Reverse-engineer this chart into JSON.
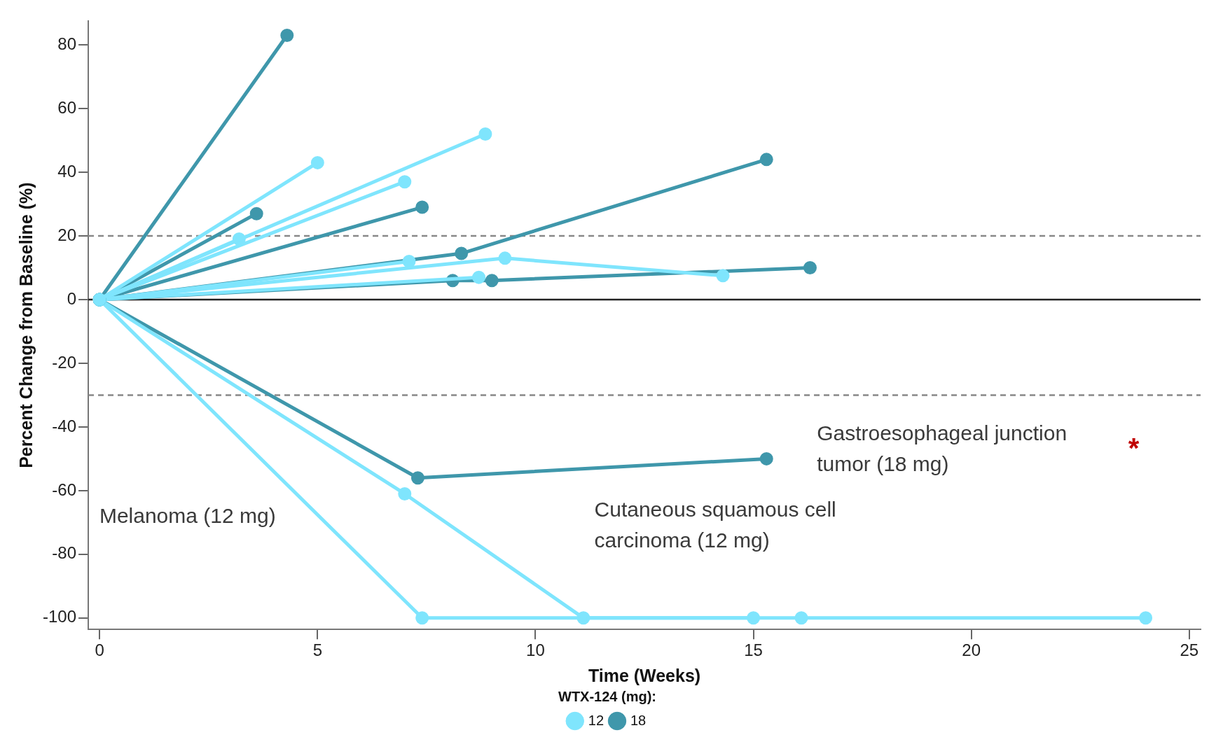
{
  "chart_data": {
    "type": "line",
    "xlabel": "Time (Weeks)",
    "ylabel": "Percent Change from Baseline (%)",
    "legend_title": "WTX-124 (mg):",
    "legend": "bottom",
    "marker": "circle",
    "line_style": "solid",
    "grid": false,
    "xlim": [
      -0.26,
      25.26
    ],
    "xticks": [
      0,
      5,
      10,
      15,
      20,
      25
    ],
    "ylim": [
      -103.6,
      87.5
    ],
    "yticks": [
      -100,
      -80,
      -60,
      -40,
      -20,
      0,
      20,
      40,
      60,
      80
    ],
    "series": [
      {
        "name": "12",
        "color": "#7fe5fd",
        "x": [
          0,
          5.0
        ],
        "values": [
          0,
          43
        ]
      },
      {
        "name": "18",
        "color": "#3f97ab",
        "x": [
          0,
          4.3
        ],
        "values": [
          0,
          83
        ]
      },
      {
        "color": "#7fe5fd",
        "x": [
          0,
          8.85
        ],
        "values": [
          0,
          52
        ]
      },
      {
        "color": "#7fe5fd",
        "x": [
          0,
          7.0
        ],
        "values": [
          0,
          37
        ]
      },
      {
        "color": "#7fe5fd",
        "x": [
          0,
          3.2
        ],
        "values": [
          0,
          19
        ]
      },
      {
        "color": "#7fe5fd",
        "x": [
          0,
          7.1
        ],
        "values": [
          0,
          12
        ]
      },
      {
        "color": "#7fe5fd",
        "x": [
          0,
          9.3,
          14.3
        ],
        "values": [
          0,
          13,
          7.5
        ]
      },
      {
        "color": "#7fe5fd",
        "x": [
          0,
          8.7
        ],
        "values": [
          0,
          7
        ]
      },
      {
        "color": "#7fe5fd",
        "x": [
          0,
          7.0,
          11.1,
          15.0
        ],
        "values": [
          0,
          -61,
          -100,
          -100
        ]
      },
      {
        "color": "#7fe5fd",
        "x": [
          0,
          7.4,
          16.1,
          24.0
        ],
        "values": [
          0,
          -100,
          -100,
          -100
        ]
      },
      {
        "color": "#3f97ab",
        "x": [
          0,
          3.6
        ],
        "values": [
          0,
          27
        ]
      },
      {
        "color": "#3f97ab",
        "x": [
          0,
          7.4
        ],
        "values": [
          0,
          29
        ]
      },
      {
        "color": "#3f97ab",
        "x": [
          0,
          8.3,
          15.3
        ],
        "values": [
          0,
          14.5,
          44
        ]
      },
      {
        "color": "#3f97ab",
        "x": [
          0,
          8.1,
          9.0,
          16.3
        ],
        "values": [
          0,
          6,
          6,
          10
        ]
      },
      {
        "color": "#3f97ab",
        "x": [
          0,
          7.3,
          15.3
        ],
        "values": [
          0,
          -56,
          -50
        ]
      }
    ],
    "ref_lines": [
      {
        "axis": "y",
        "value": 20,
        "color": "#888888",
        "line_style": "dashed"
      },
      {
        "axis": "y",
        "value": -30,
        "color": "#888888",
        "line_style": "dashed"
      },
      {
        "axis": "y",
        "value": 0,
        "color": "#222222",
        "line_style": "solid"
      }
    ],
    "annotations": [
      "Melanoma (12 mg)",
      "Cutaneous squamous cell carcinoma (12 mg)",
      "Gastroesophageal junction tumor (18 mg)",
      "*"
    ]
  }
}
